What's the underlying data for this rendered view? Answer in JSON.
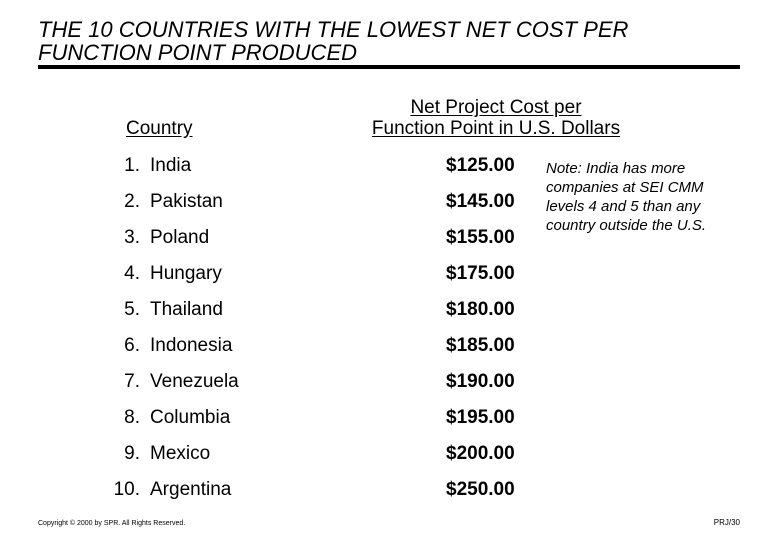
{
  "slide": {
    "title_line1": "THE 10 COUNTRIES WITH THE LOWEST NET COST PER",
    "title_line2": "FUNCTION POINT PRODUCED",
    "country_header": "Country",
    "cost_header_line1": "Net Project Cost per",
    "cost_header_line2": "Function Point in U.S. Dollars",
    "rows": [
      {
        "rank": "1.",
        "country": "India",
        "cost": "$125.00"
      },
      {
        "rank": "2.",
        "country": "Pakistan",
        "cost": "$145.00"
      },
      {
        "rank": "3.",
        "country": "Poland",
        "cost": "$155.00"
      },
      {
        "rank": "4.",
        "country": "Hungary",
        "cost": "$175.00"
      },
      {
        "rank": "5.",
        "country": "Thailand",
        "cost": "$180.00"
      },
      {
        "rank": "6.",
        "country": "Indonesia",
        "cost": "$185.00"
      },
      {
        "rank": "7.",
        "country": "Venezuela",
        "cost": "$190.00"
      },
      {
        "rank": "8.",
        "country": "Columbia",
        "cost": "$195.00"
      },
      {
        "rank": "9.",
        "country": "Mexico",
        "cost": "$200.00"
      },
      {
        "rank": "10.",
        "country": "Argentina",
        "cost": "$250.00"
      }
    ],
    "note": "Note:  India has more companies at SEI CMM levels 4 and 5 than any country outside the U.S.",
    "footer_copyright": "Copyright © 2000 by SPR.  All Rights Reserved.",
    "page_id": "PRJ/30"
  }
}
